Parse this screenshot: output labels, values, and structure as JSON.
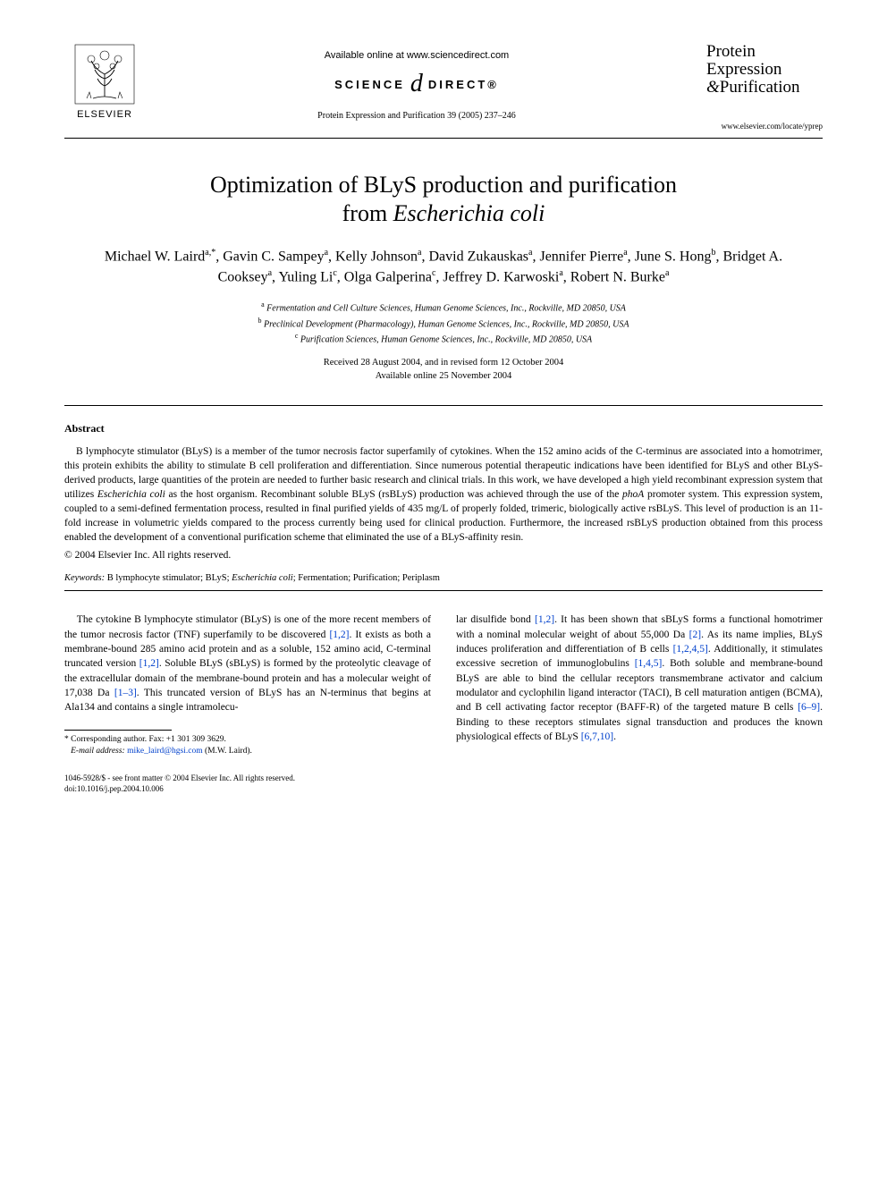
{
  "header": {
    "publisher_name": "ELSEVIER",
    "available_online": "Available online at www.sciencedirect.com",
    "science_direct_left": "SCIENCE",
    "science_direct_right": "DIRECT®",
    "journal_reference": "Protein Expression and Purification 39 (2005) 237–246",
    "journal_name_line1": "Protein",
    "journal_name_line2": "Expression",
    "journal_name_line3": "Purification",
    "locate_url": "www.elsevier.com/locate/yprep"
  },
  "title": {
    "line1": "Optimization of BLyS production and purification",
    "line2_pre": "from ",
    "line2_species": "Escherichia coli"
  },
  "authors_html": "Michael W. Laird<sup>a,*</sup>, Gavin C. Sampey<sup>a</sup>, Kelly Johnson<sup>a</sup>, David Zukauskas<sup>a</sup>, Jennifer Pierre<sup>a</sup>, June S. Hong<sup>b</sup>, Bridget A. Cooksey<sup>a</sup>, Yuling Li<sup>c</sup>, Olga Galperina<sup>c</sup>, Jeffrey D. Karwoski<sup>a</sup>, Robert N. Burke<sup>a</sup>",
  "affiliations": {
    "a": "Fermentation and Cell Culture Sciences, Human Genome Sciences, Inc., Rockville, MD 20850, USA",
    "b": "Preclinical Development (Pharmacology), Human Genome Sciences, Inc., Rockville, MD 20850, USA",
    "c": "Purification Sciences, Human Genome Sciences, Inc., Rockville, MD 20850, USA"
  },
  "dates": {
    "received": "Received 28 August 2004, and in revised form 12 October 2004",
    "available": "Available online 25 November 2004"
  },
  "abstract": {
    "heading": "Abstract",
    "body_pre": "B lymphocyte stimulator (BLyS) is a member of the tumor necrosis factor superfamily of cytokines. When the 152 amino acids of the C-terminus are associated into a homotrimer, this protein exhibits the ability to stimulate B cell proliferation and differentiation. Since numerous potential therapeutic indications have been identified for BLyS and other BLyS-derived products, large quantities of the protein are needed to further basic research and clinical trials. In this work, we have developed a high yield recombinant expression system that utilizes ",
    "body_species": "Escherichia coli",
    "body_mid": " as the host organism. Recombinant soluble BLyS (rsBLyS) production was achieved through the use of the ",
    "body_gene": "phoA",
    "body_post": " promoter system. This expression system, coupled to a semi-defined fermentation process, resulted in final purified yields of 435 mg/L of properly folded, trimeric, biologically active rsBLyS. This level of production is an 11-fold increase in volumetric yields compared to the process currently being used for clinical production. Furthermore, the increased rsBLyS production obtained from this process enabled the development of a conventional purification scheme that eliminated the use of a BLyS-affinity resin.",
    "copyright": "© 2004 Elsevier Inc. All rights reserved."
  },
  "keywords": {
    "label": "Keywords:",
    "list_pre": " B lymphocyte stimulator; BLyS; ",
    "list_species": "Escherichia coli",
    "list_post": "; Fermentation; Purification; Periplasm"
  },
  "body": {
    "col1_p1_a": "The cytokine B lymphocyte stimulator (BLyS) is one of the more recent members of the tumor necrosis factor (TNF) superfamily to be discovered ",
    "col1_p1_ref1": "[1,2]",
    "col1_p1_b": ". It exists as both a membrane-bound 285 amino acid protein and as a soluble, 152 amino acid, C-terminal truncated version ",
    "col1_p1_ref2": "[1,2]",
    "col1_p1_c": ". Soluble BLyS (sBLyS) is formed by the proteolytic cleavage of the extracellular domain of the membrane-bound protein and has a molecular weight of 17,038 Da ",
    "col1_p1_ref3": "[1–3]",
    "col1_p1_d": ". This truncated version of BLyS has an N-terminus that begins at Ala134 and contains a single intramolecu-",
    "col2_p1_a": "lar disulfide bond ",
    "col2_p1_ref1": "[1,2]",
    "col2_p1_b": ". It has been shown that sBLyS forms a functional homotrimer with a nominal molecular weight of about 55,000 Da ",
    "col2_p1_ref2": "[2]",
    "col2_p1_c": ". As its name implies, BLyS induces proliferation and differentiation of B cells ",
    "col2_p1_ref3": "[1,2,4,5]",
    "col2_p1_d": ". Additionally, it stimulates excessive secretion of immunoglobulins ",
    "col2_p1_ref4": "[1,4,5]",
    "col2_p1_e": ". Both soluble and membrane-bound BLyS are able to bind the cellular receptors transmembrane activator and calcium modulator and cyclophilin ligand interactor (TACI), B cell maturation antigen (BCMA), and B cell activating factor receptor (BAFF-R) of the targeted mature B cells ",
    "col2_p1_ref5": "[6–9]",
    "col2_p1_f": ". Binding to these receptors stimulates signal transduction and produces the known physiological effects of BLyS ",
    "col2_p1_ref6": "[6,7,10]",
    "col2_p1_g": "."
  },
  "footnote": {
    "corr_label": "* Corresponding author. Fax: +1 301 309 3629.",
    "email_label": "E-mail address:",
    "email": "mike_laird@hgsi.com",
    "email_who": " (M.W. Laird)."
  },
  "footer": {
    "line1": "1046-5928/$ - see front matter © 2004 Elsevier Inc. All rights reserved.",
    "line2": "doi:10.1016/j.pep.2004.10.006"
  },
  "colors": {
    "text": "#000000",
    "link": "#0040cc",
    "background": "#ffffff",
    "rule": "#000000"
  },
  "typography": {
    "body_font": "Georgia, 'Times New Roman', serif",
    "title_size_pt": 20,
    "author_size_pt": 12,
    "body_size_pt": 9,
    "abstract_size_pt": 9,
    "footnote_size_pt": 7
  }
}
